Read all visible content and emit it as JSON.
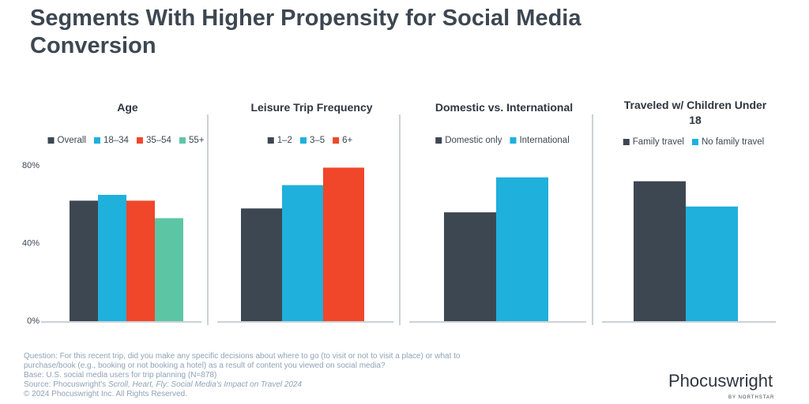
{
  "title": "Segments With Higher Propensity for Social Media Conversion",
  "chart_data": [
    {
      "type": "bar",
      "title": "Age",
      "categories": [
        "Overall",
        "18–34",
        "35–54",
        "55+"
      ],
      "values": [
        62,
        65,
        62,
        53
      ],
      "colors": [
        "#3d4752",
        "#1fb0dc",
        "#f0462a",
        "#5cc6a4"
      ],
      "ylim": [
        0,
        80
      ],
      "yticks": [
        {
          "value": 0,
          "label": "0%"
        },
        {
          "value": 40,
          "label": "40%"
        },
        {
          "value": 80,
          "label": "80%"
        }
      ],
      "grid": false
    },
    {
      "type": "bar",
      "title": "Leisure Trip Frequency",
      "categories": [
        "1–2",
        "3–5",
        "6+"
      ],
      "values": [
        58,
        70,
        79
      ],
      "colors": [
        "#3d4752",
        "#1fb0dc",
        "#f0462a"
      ],
      "ylim": [
        0,
        80
      ],
      "grid": false
    },
    {
      "type": "bar",
      "title": "Domestic vs. International",
      "categories": [
        "Domestic only",
        "International"
      ],
      "values": [
        56,
        74
      ],
      "colors": [
        "#3d4752",
        "#1fb0dc"
      ],
      "ylim": [
        0,
        80
      ],
      "grid": false
    },
    {
      "type": "bar",
      "title": "Traveled w/ Children Under 18",
      "categories": [
        "Family travel",
        "No family travel"
      ],
      "values": [
        72,
        59
      ],
      "colors": [
        "#3d4752",
        "#1fb0dc"
      ],
      "ylim": [
        0,
        80
      ],
      "grid": false
    }
  ],
  "footnotes": {
    "question": "Question: For this recent trip, did you make any specific decisions about where to go (to visit or not to visit a place) or what to purchase/book (e.g., booking or not booking a hotel) as a result of content you viewed on social media?",
    "base": "Base: U.S. social media users for trip planning (N=878)",
    "source_prefix": "Source: Phocuswright's",
    "source_title": "Scroll, Heart, Fly: Social Media's Impact on Travel 2024",
    "copyright": "© 2024 Phocuswright Inc. All Rights Reserved."
  },
  "logo": {
    "name": "Phocuswright",
    "tagline": "BY NORTHSTAR"
  }
}
